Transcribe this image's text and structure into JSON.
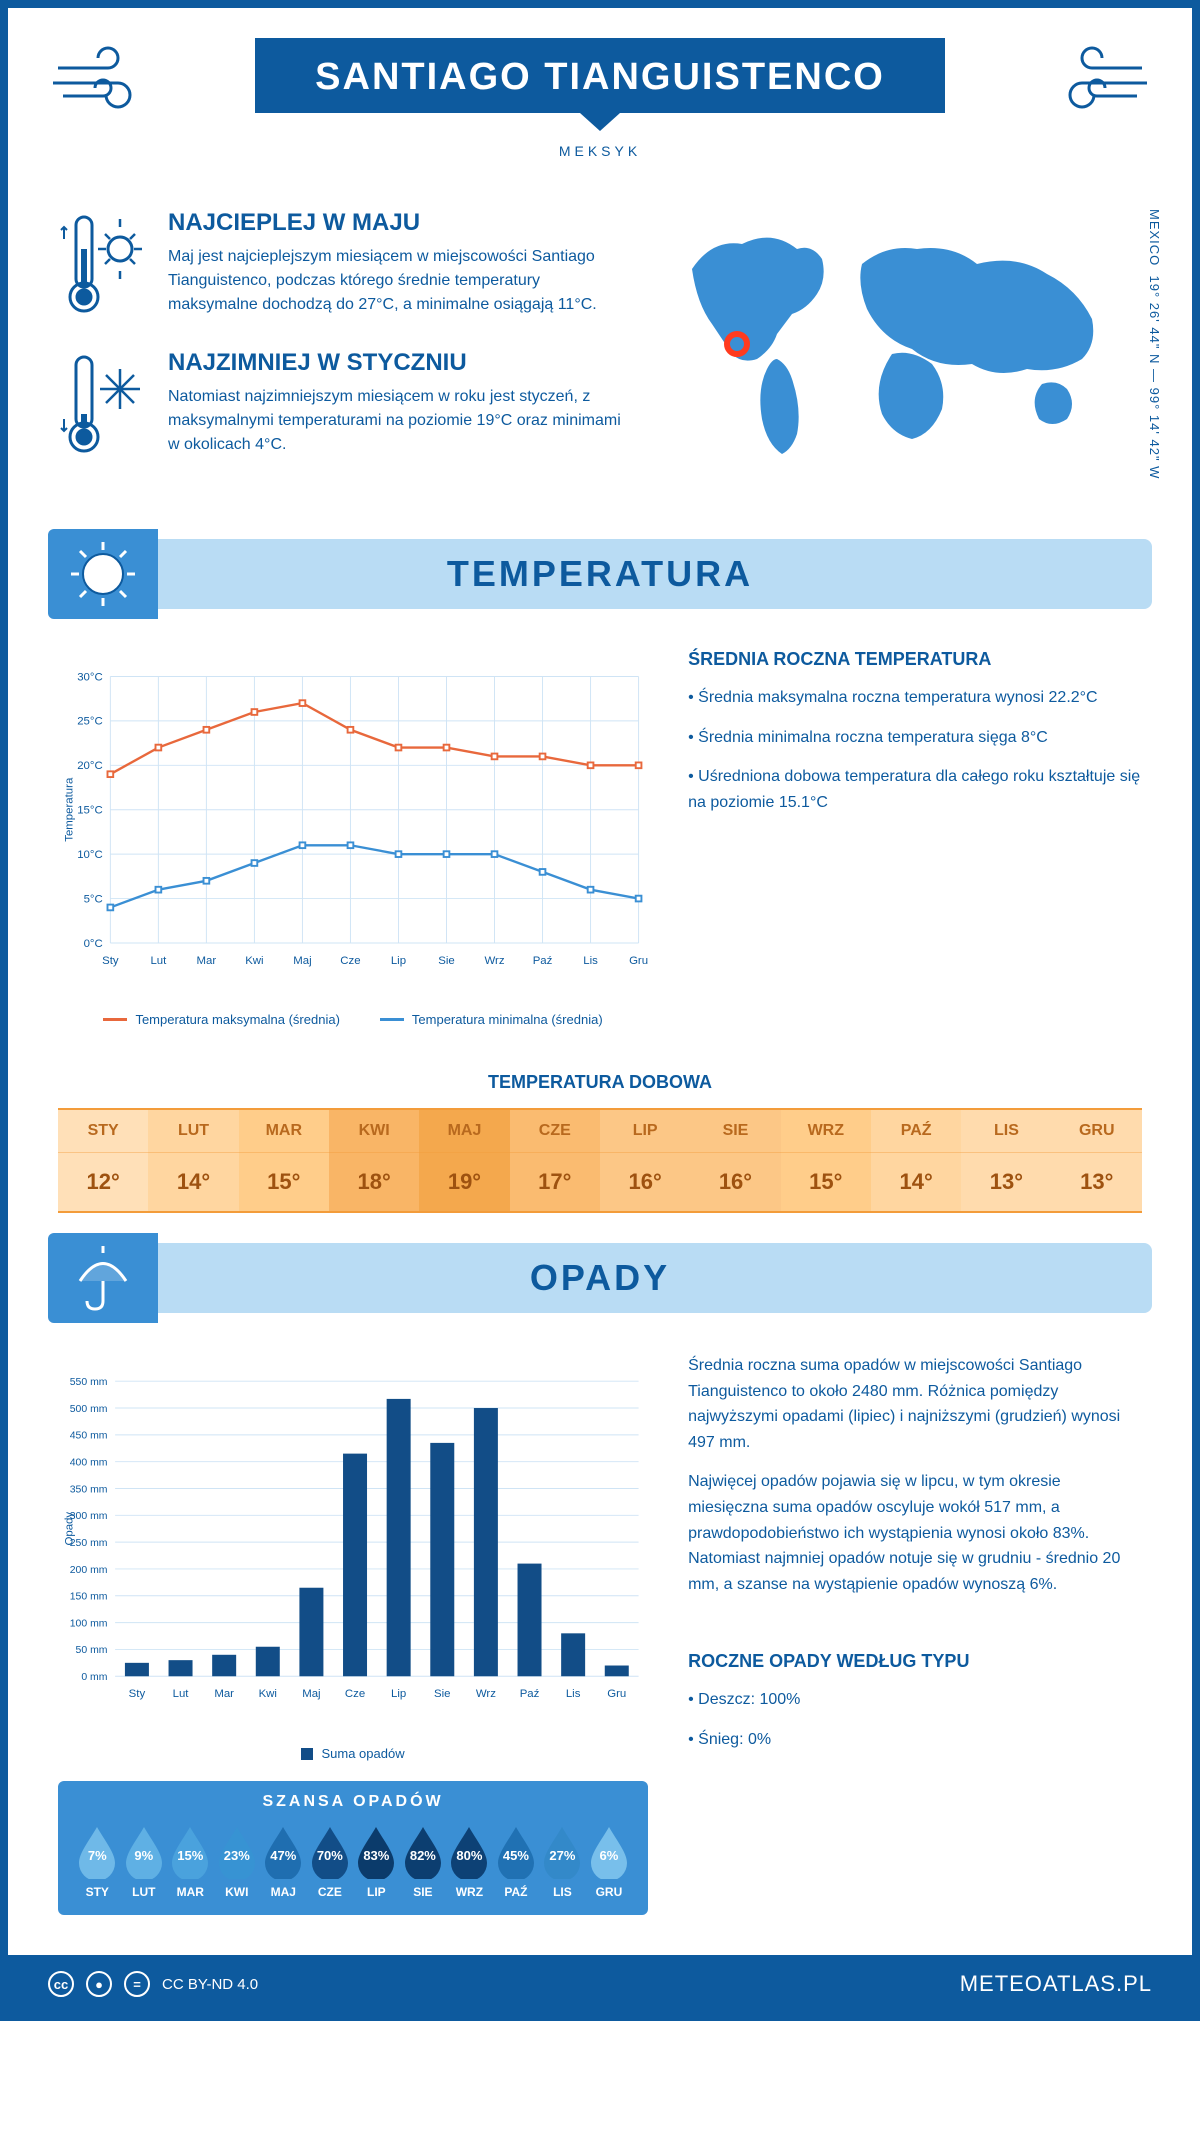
{
  "header": {
    "title": "SANTIAGO TIANGUISTENCO",
    "subtitle": "MEKSYK"
  },
  "coords": "19° 26' 44\" N — 99° 14' 42\" W",
  "coords_label": "MEXICO",
  "warmest": {
    "title": "NAJCIEPLEJ W MAJU",
    "text": "Maj jest najcieplejszym miesiącem w miejscowości Santiago Tianguistenco, podczas którego średnie temperatury maksymalne dochodzą do 27°C, a minimalne osiągają 11°C."
  },
  "coldest": {
    "title": "NAJZIMNIEJ W STYCZNIU",
    "text": "Natomiast najzimniejszym miesiącem w roku jest styczeń, z maksymalnymi temperaturami na poziomie 19°C oraz minimami w okolicach 4°C."
  },
  "sections": {
    "temperature": "TEMPERATURA",
    "precipitation": "OPADY"
  },
  "temp_chart": {
    "type": "line",
    "months": [
      "Sty",
      "Lut",
      "Mar",
      "Kwi",
      "Maj",
      "Cze",
      "Lip",
      "Sie",
      "Wrz",
      "Paź",
      "Lis",
      "Gru"
    ],
    "max_series": [
      19,
      22,
      24,
      26,
      27,
      24,
      22,
      22,
      21,
      21,
      20,
      20
    ],
    "min_series": [
      4,
      6,
      7,
      9,
      11,
      11,
      10,
      10,
      10,
      8,
      6,
      5
    ],
    "max_color": "#e8683c",
    "min_color": "#3a8fd4",
    "ylabel": "Temperatura",
    "ylim": [
      0,
      30
    ],
    "ytick_step": 5,
    "grid_color": "#cfe4f5",
    "legend_max": "Temperatura maksymalna (średnia)",
    "legend_min": "Temperatura minimalna (średnia)"
  },
  "annual_temp": {
    "title": "ŚREDNIA ROCZNA TEMPERATURA",
    "b1": "• Średnia maksymalna roczna temperatura wynosi 22.2°C",
    "b2": "• Średnia minimalna roczna temperatura sięga 8°C",
    "b3": "• Uśredniona dobowa temperatura dla całego roku kształtuje się na poziomie 15.1°C"
  },
  "daily": {
    "title": "TEMPERATURA DOBOWA",
    "months": [
      "STY",
      "LUT",
      "MAR",
      "KWI",
      "MAJ",
      "CZE",
      "LIP",
      "SIE",
      "WRZ",
      "PAŹ",
      "LIS",
      "GRU"
    ],
    "values": [
      "12°",
      "14°",
      "15°",
      "18°",
      "19°",
      "17°",
      "16°",
      "16°",
      "15°",
      "14°",
      "13°",
      "13°"
    ],
    "colors": [
      "#ffe0b8",
      "#ffd6a0",
      "#ffcd8a",
      "#f9b566",
      "#f4a84d",
      "#fabb70",
      "#fcc786",
      "#fcc786",
      "#ffcd8a",
      "#ffd6a0",
      "#ffdbad",
      "#ffdbad"
    ]
  },
  "precip_chart": {
    "type": "bar",
    "months": [
      "Sty",
      "Lut",
      "Mar",
      "Kwi",
      "Maj",
      "Cze",
      "Lip",
      "Sie",
      "Wrz",
      "Paź",
      "Lis",
      "Gru"
    ],
    "values": [
      25,
      30,
      40,
      55,
      165,
      415,
      517,
      435,
      500,
      210,
      80,
      20
    ],
    "bar_color": "#124d87",
    "ylabel": "Opady",
    "ylim": [
      0,
      550
    ],
    "ytick_step": 50,
    "grid_color": "#cfe4f5",
    "legend": "Suma opadów"
  },
  "precip_text": {
    "p1": "Średnia roczna suma opadów w miejscowości Santiago Tianguistenco to około 2480 mm. Różnica pomiędzy najwyższymi opadami (lipiec) i najniższymi (grudzień) wynosi 497 mm.",
    "p2": "Najwięcej opadów pojawia się w lipcu, w tym okresie miesięczna suma opadów oscyluje wokół 517 mm, a prawdopodobieństwo ich wystąpienia wynosi około 83%. Natomiast najmniej opadów notuje się w grudniu - średnio 20 mm, a szanse na wystąpienie opadów wynoszą 6%."
  },
  "chance": {
    "title": "SZANSA OPADÓW",
    "months": [
      "STY",
      "LUT",
      "MAR",
      "KWI",
      "MAJ",
      "CZE",
      "LIP",
      "SIE",
      "WRZ",
      "PAŹ",
      "LIS",
      "GRU"
    ],
    "values": [
      "7%",
      "9%",
      "15%",
      "23%",
      "47%",
      "70%",
      "83%",
      "82%",
      "80%",
      "45%",
      "27%",
      "6%"
    ],
    "colors": [
      "#6fb9e8",
      "#5fb0e4",
      "#4aa2dd",
      "#3793d3",
      "#1f6eb0",
      "#124d87",
      "#0b3b6b",
      "#0c3e70",
      "#0d4175",
      "#2071b3",
      "#3389c9",
      "#78bfeb"
    ]
  },
  "precip_type": {
    "title": "ROCZNE OPADY WEDŁUG TYPU",
    "rain": "• Deszcz: 100%",
    "snow": "• Śnieg: 0%"
  },
  "footer": {
    "license": "CC BY-ND 4.0",
    "site": "METEOATLAS.PL"
  }
}
